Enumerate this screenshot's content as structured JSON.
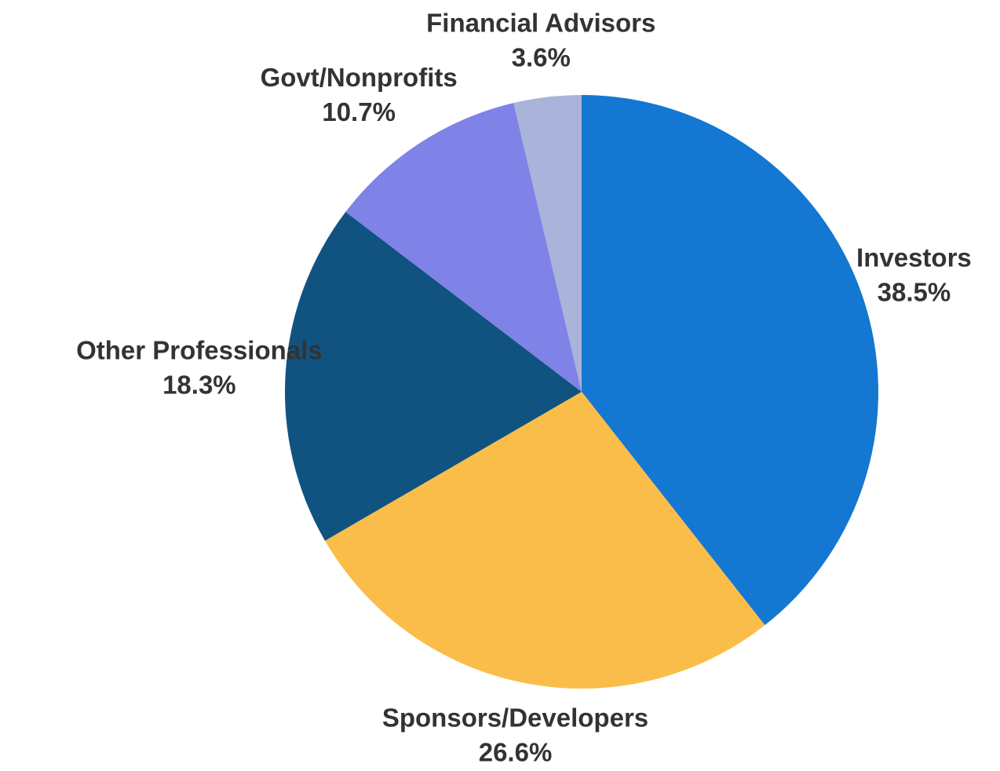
{
  "chart_data": {
    "type": "pie",
    "categories": [
      "Investors",
      "Sponsors/Developers",
      "Other Professionals",
      "Govt/Nonprofits",
      "Financial Advisors"
    ],
    "values": [
      38.5,
      26.6,
      18.3,
      10.7,
      3.6
    ],
    "value_labels": [
      "38.5%",
      "26.6%",
      "18.3%",
      "10.7%",
      "3.6%"
    ],
    "colors": [
      "#1477d1",
      "#fbbd4a",
      "#105380",
      "#7f82e6",
      "#aab3d9"
    ]
  }
}
